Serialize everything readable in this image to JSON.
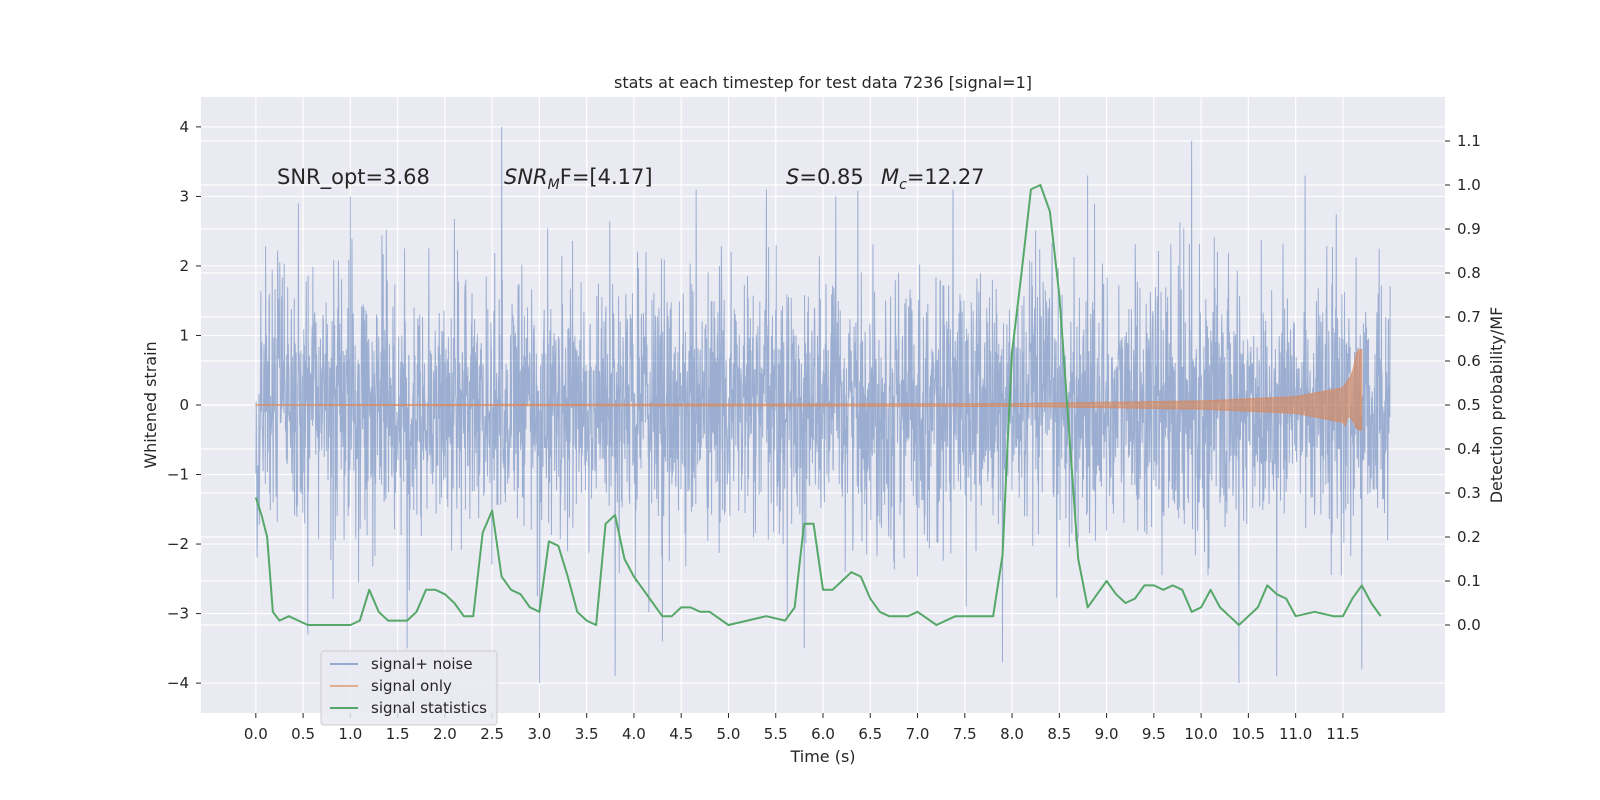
{
  "chart_data": {
    "type": "line",
    "title": "stats at each timestep for test data 7236 [signal=1]",
    "xlabel": "Time (s)",
    "ylabel_left": "Whitened strain",
    "ylabel_right": "Detection probability/MF",
    "xlim": [
      -0.58,
      12.58
    ],
    "ylim_left": [
      -4.43,
      4.43
    ],
    "ylim_right": [
      -0.2,
      1.2
    ],
    "x_ticks": [
      "0.0",
      "0.5",
      "1.0",
      "1.5",
      "2.0",
      "2.5",
      "3.0",
      "3.5",
      "4.0",
      "4.5",
      "5.0",
      "5.5",
      "6.0",
      "6.5",
      "7.0",
      "7.5",
      "8.0",
      "8.5",
      "9.0",
      "9.5",
      "10.0",
      "10.5",
      "11.0",
      "11.5"
    ],
    "y_ticks_left": [
      "4",
      "3",
      "2",
      "1",
      "0",
      "−1",
      "−2",
      "−3",
      "−4"
    ],
    "y_ticks_right": [
      "1.1",
      "1.0",
      "0.9",
      "0.8",
      "0.7",
      "0.6",
      "0.5",
      "0.4",
      "0.3",
      "0.2",
      "0.1",
      "0.0"
    ],
    "grid": true,
    "legend_placement": "lower-left",
    "annotations": {
      "snr_opt": "SNR_opt=3.68",
      "snr_mf_sym": "SNR",
      "snr_mf_sub": "M",
      "snr_mf_rest": "F=[4.17]",
      "s_sym": "S",
      "s_val": "=0.85",
      "mc_sym": "M",
      "mc_sub": "c",
      "mc_val": "=12.27"
    },
    "series": [
      {
        "name": "signal+ noise",
        "color": "#4c72b0",
        "axis": "left",
        "t_range": [
          0.0,
          12.0
        ],
        "note_values": "dense noise trace; envelope approx ±2.4, extremes from -4.0 to 4.1",
        "envelope_upper": 2.4,
        "envelope_lower": -2.4,
        "peaks": [
          [
            0.45,
            2.9
          ],
          [
            1.0,
            3.0
          ],
          [
            2.6,
            4.0
          ],
          [
            3.0,
            3.4
          ],
          [
            3.8,
            3.3
          ],
          [
            5.4,
            3.1
          ],
          [
            8.8,
            3.3
          ],
          [
            9.9,
            3.8
          ],
          [
            11.1,
            3.3
          ],
          [
            11.7,
            4.1
          ]
        ],
        "troughs": [
          [
            0.55,
            -3.3
          ],
          [
            1.6,
            -3.5
          ],
          [
            3.0,
            -4.0
          ],
          [
            3.8,
            -3.9
          ],
          [
            4.3,
            -3.4
          ],
          [
            5.8,
            -3.5
          ],
          [
            7.9,
            -3.7
          ],
          [
            10.4,
            -4.0
          ],
          [
            10.8,
            -3.9
          ],
          [
            11.7,
            -3.8
          ]
        ]
      },
      {
        "name": "signal only",
        "color": "#dd8452",
        "axis": "left",
        "t_range": [
          0.0,
          11.7
        ],
        "note_values": "chirp; amplitude grows near merger at ~11.65 s",
        "amplitude_at": [
          [
            0.0,
            0.005
          ],
          [
            8.0,
            0.02
          ],
          [
            10.0,
            0.06
          ],
          [
            11.0,
            0.12
          ],
          [
            11.5,
            0.25
          ],
          [
            11.6,
            0.45
          ],
          [
            11.65,
            0.8
          ]
        ]
      },
      {
        "name": "signal statistics",
        "color": "#55a868",
        "axis": "right",
        "x": [
          0.0,
          0.06,
          0.12,
          0.18,
          0.25,
          0.35,
          0.45,
          0.55,
          0.65,
          0.75,
          0.85,
          1.0,
          1.1,
          1.2,
          1.3,
          1.4,
          1.5,
          1.6,
          1.7,
          1.8,
          1.9,
          2.0,
          2.1,
          2.2,
          2.3,
          2.4,
          2.5,
          2.6,
          2.7,
          2.8,
          2.9,
          3.0,
          3.1,
          3.2,
          3.3,
          3.4,
          3.5,
          3.6,
          3.7,
          3.8,
          3.9,
          4.0,
          4.1,
          4.2,
          4.3,
          4.4,
          4.5,
          4.6,
          4.7,
          4.8,
          5.0,
          5.2,
          5.4,
          5.6,
          5.7,
          5.8,
          5.9,
          6.0,
          6.1,
          6.2,
          6.3,
          6.4,
          6.5,
          6.6,
          6.7,
          6.8,
          6.9,
          7.0,
          7.2,
          7.4,
          7.6,
          7.8,
          7.9,
          7.95,
          8.0,
          8.1,
          8.2,
          8.3,
          8.4,
          8.5,
          8.6,
          8.7,
          8.8,
          8.9,
          9.0,
          9.1,
          9.2,
          9.3,
          9.4,
          9.5,
          9.6,
          9.7,
          9.8,
          9.9,
          10.0,
          10.1,
          10.2,
          10.3,
          10.4,
          10.5,
          10.6,
          10.7,
          10.8,
          10.9,
          11.0,
          11.2,
          11.4,
          11.5,
          11.6,
          11.7,
          11.8,
          11.9
        ],
        "y": [
          0.29,
          0.25,
          0.2,
          0.03,
          0.01,
          0.02,
          0.01,
          0.0,
          0.0,
          0.0,
          0.0,
          0.0,
          0.01,
          0.08,
          0.03,
          0.01,
          0.01,
          0.01,
          0.03,
          0.08,
          0.08,
          0.07,
          0.05,
          0.02,
          0.02,
          0.21,
          0.26,
          0.11,
          0.08,
          0.07,
          0.04,
          0.03,
          0.19,
          0.18,
          0.11,
          0.03,
          0.01,
          0.0,
          0.23,
          0.25,
          0.15,
          0.11,
          0.08,
          0.05,
          0.02,
          0.02,
          0.04,
          0.04,
          0.03,
          0.03,
          0.0,
          0.01,
          0.02,
          0.01,
          0.04,
          0.23,
          0.23,
          0.08,
          0.08,
          0.1,
          0.12,
          0.11,
          0.06,
          0.03,
          0.02,
          0.02,
          0.02,
          0.03,
          0.0,
          0.02,
          0.02,
          0.02,
          0.16,
          0.4,
          0.62,
          0.8,
          0.99,
          1.0,
          0.94,
          0.75,
          0.45,
          0.15,
          0.04,
          0.07,
          0.1,
          0.07,
          0.05,
          0.06,
          0.09,
          0.09,
          0.08,
          0.09,
          0.08,
          0.03,
          0.04,
          0.08,
          0.04,
          0.02,
          0.0,
          0.02,
          0.04,
          0.09,
          0.07,
          0.06,
          0.02,
          0.03,
          0.02,
          0.02,
          0.06,
          0.09,
          0.05,
          0.02
        ]
      }
    ]
  }
}
